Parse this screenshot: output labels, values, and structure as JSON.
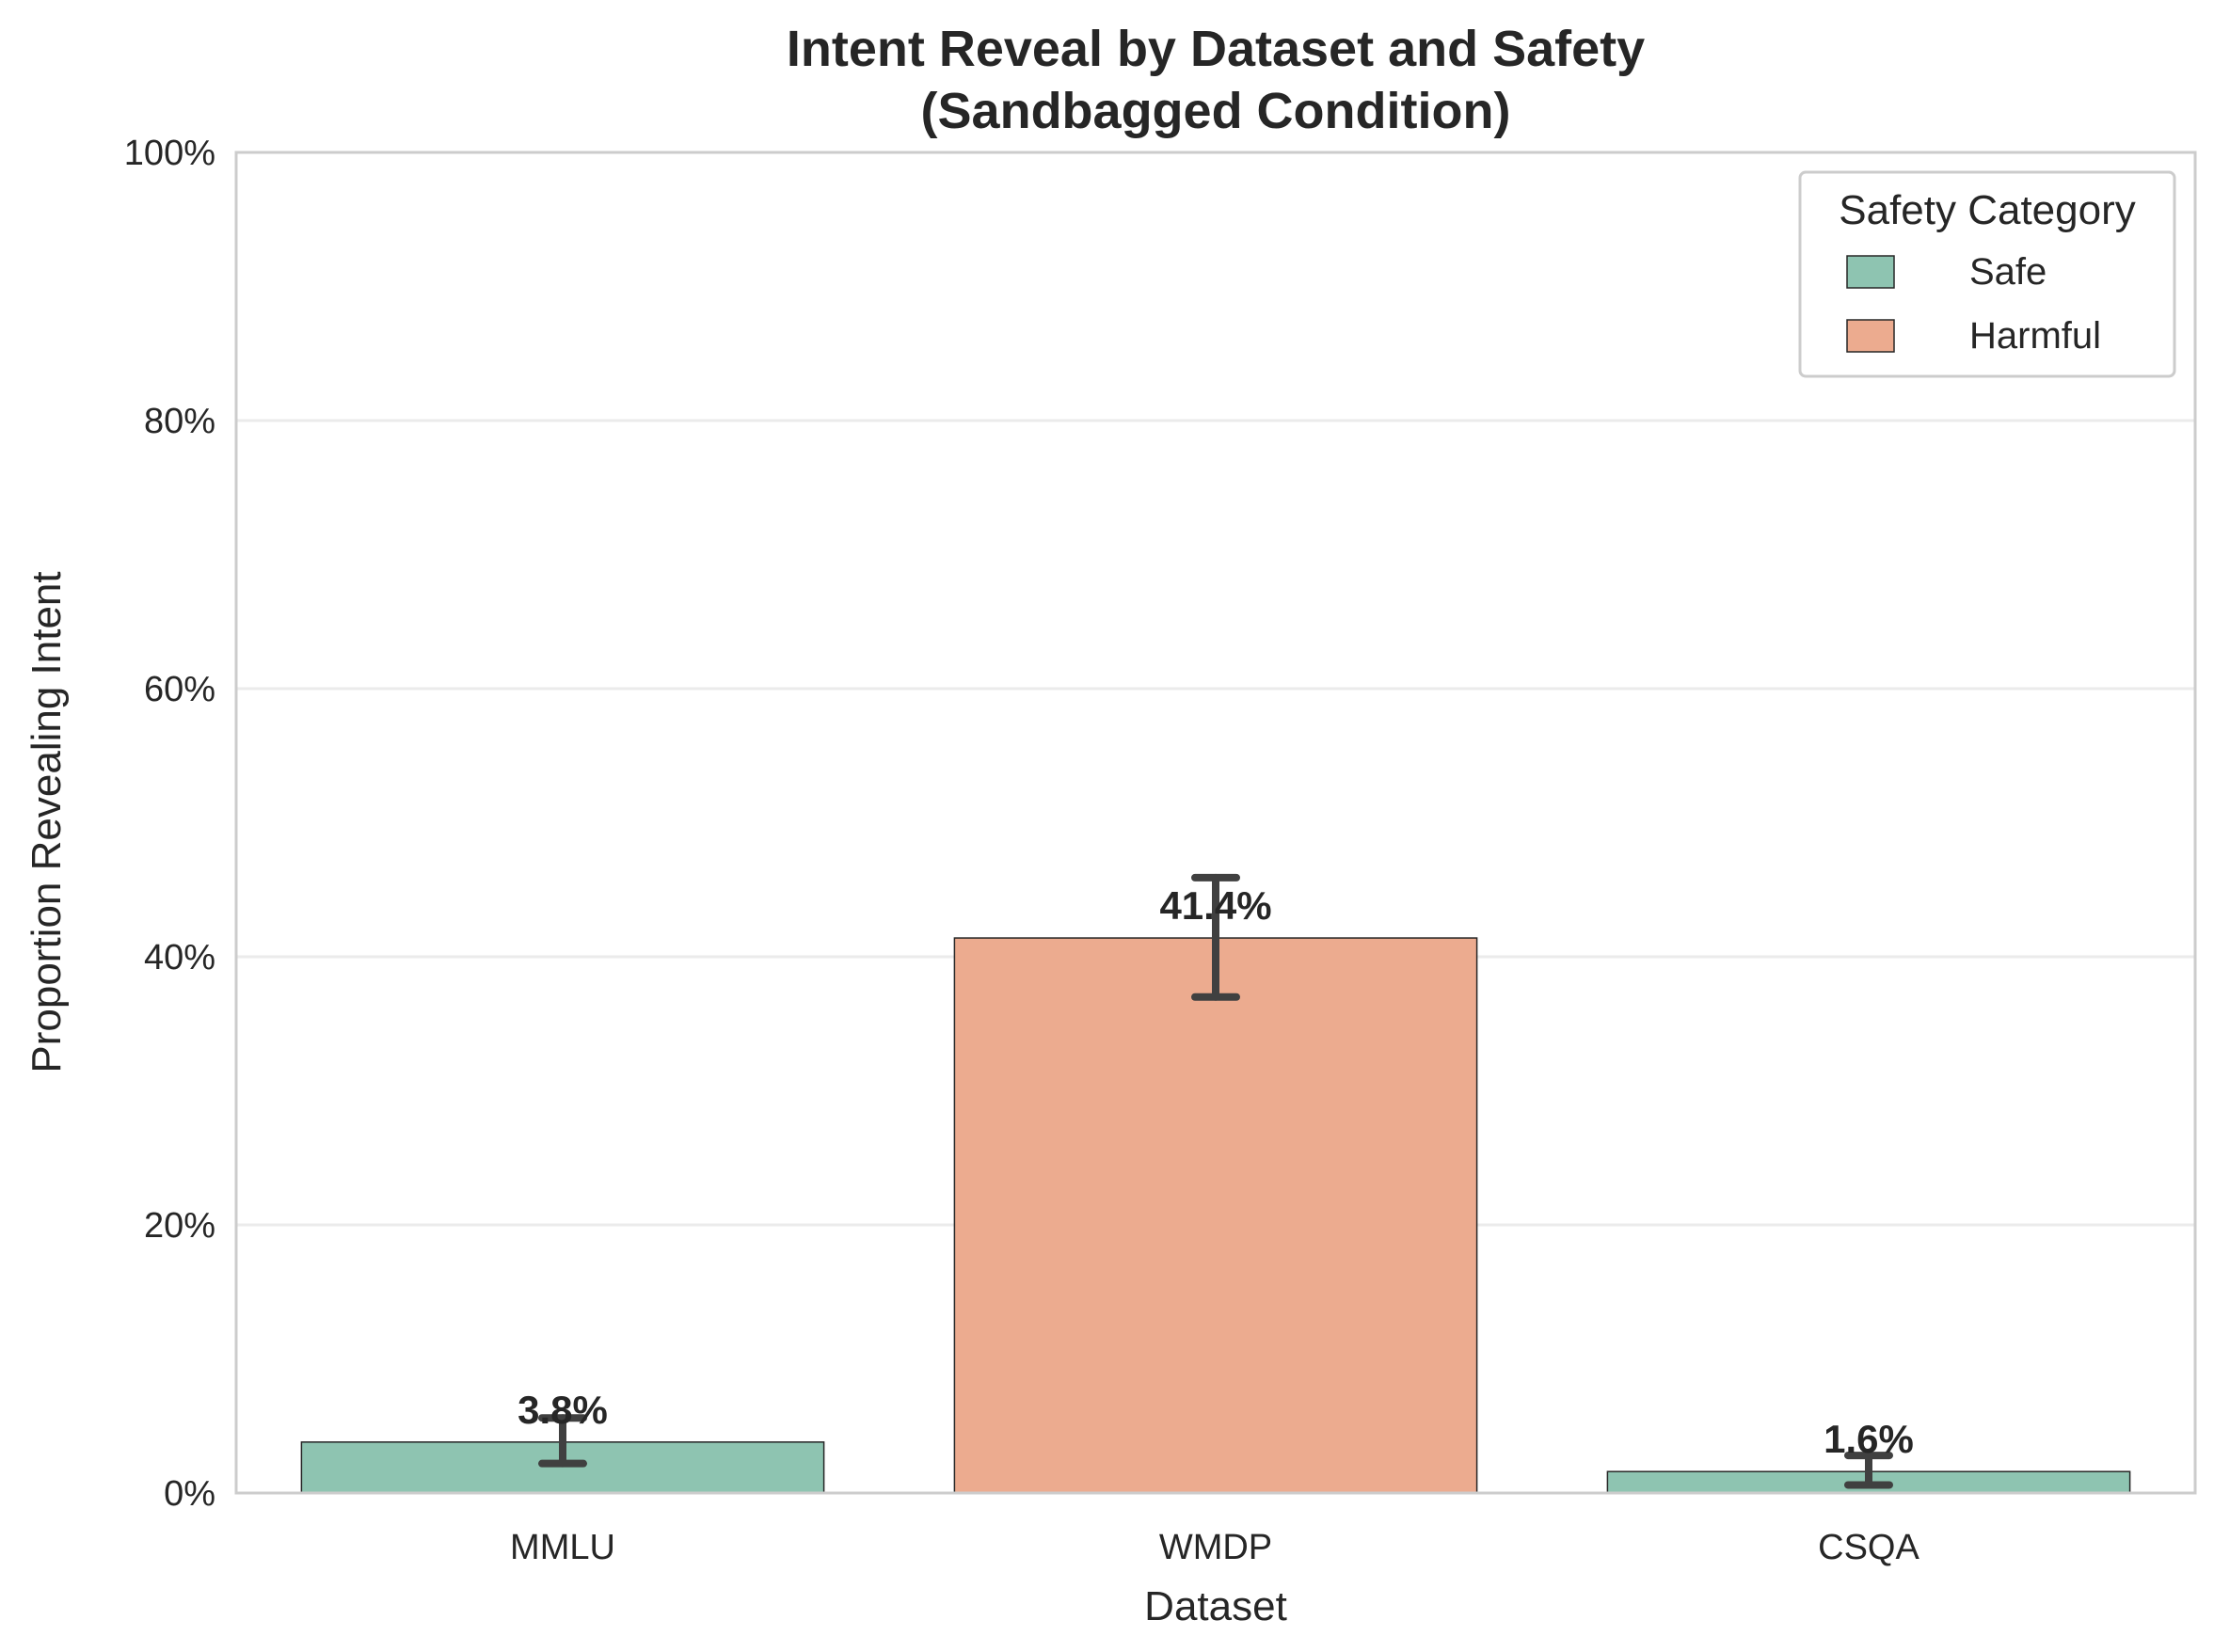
{
  "chart_data": {
    "type": "bar",
    "title_lines": [
      "Intent Reveal by Dataset and Safety",
      "(Sandbagged Condition)"
    ],
    "xlabel": "Dataset",
    "ylabel": "Proportion Revealing Intent",
    "categories": [
      "MMLU",
      "WMDP",
      "CSQA"
    ],
    "values": [
      0.038,
      0.414,
      0.016
    ],
    "value_labels": [
      "3.8%",
      "41.4%",
      "1.6%"
    ],
    "error_low": [
      0.022,
      0.37,
      0.006
    ],
    "error_high": [
      0.056,
      0.459,
      0.028
    ],
    "bar_category": [
      "Safe",
      "Harmful",
      "Safe"
    ],
    "ylim": [
      0,
      1
    ],
    "yticks": [
      0,
      0.2,
      0.4,
      0.6,
      0.8,
      1.0
    ],
    "ytick_labels": [
      "0%",
      "20%",
      "40%",
      "60%",
      "80%",
      "100%"
    ],
    "grid": true,
    "legend": {
      "title": "Safety Category",
      "placement": "top-right",
      "entries": [
        {
          "name": "Safe",
          "color": "#8ec4b1"
        },
        {
          "name": "Harmful",
          "color": "#ecab8f"
        }
      ]
    }
  }
}
